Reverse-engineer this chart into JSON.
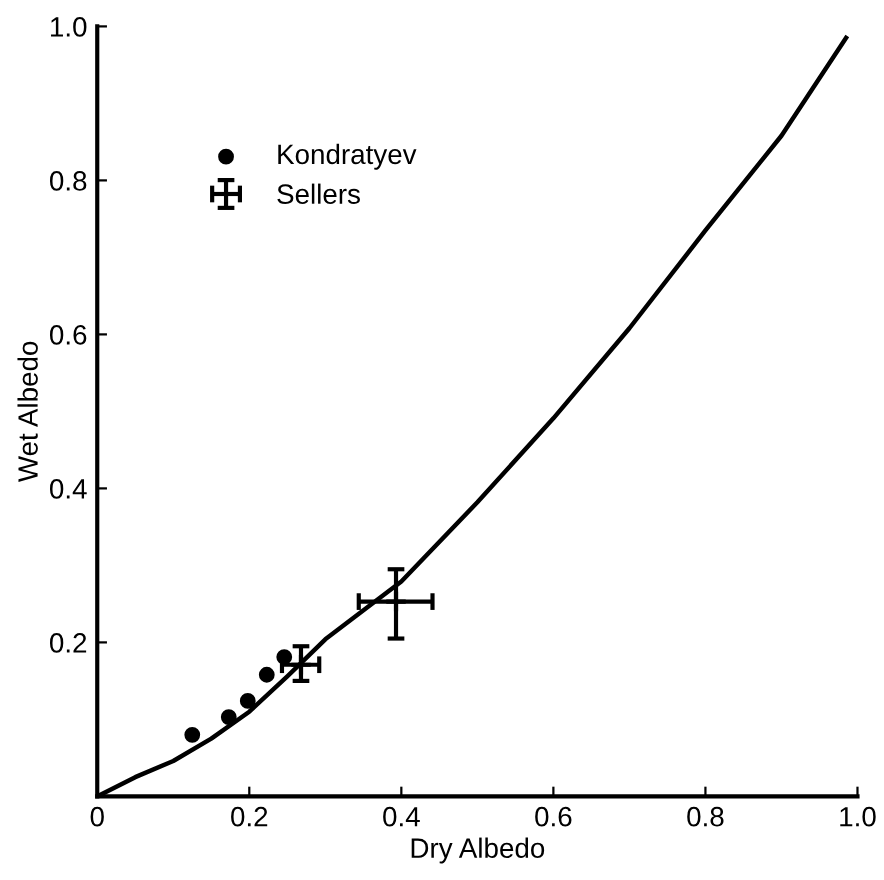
{
  "chart_data": {
    "type": "scatter",
    "xlabel": "Dry Albedo",
    "ylabel": "Wet Albedo",
    "xlim": [
      0,
      1.0
    ],
    "ylim": [
      0,
      1.0
    ],
    "xticks": [
      0,
      0.2,
      0.4,
      0.6,
      0.8,
      {
        "value": 1.0,
        "label": "1.0"
      }
    ],
    "yticks": [
      {
        "value": 0,
        "label": null
      },
      0.2,
      0.4,
      0.6,
      0.8,
      {
        "value": 1.0,
        "label": "1.0"
      }
    ],
    "grid": false,
    "legend": "top left",
    "series": [
      {
        "type": "line",
        "color": "#000000",
        "marker": "none",
        "x": [
          0,
          0.05,
          0.1,
          0.15,
          0.2,
          0.25,
          0.3,
          0.4,
          0.5,
          0.6,
          0.7,
          0.8,
          0.9,
          0.985
        ],
        "values": [
          0,
          0.025,
          0.046,
          0.075,
          0.11,
          0.156,
          0.204,
          0.279,
          0.382,
          0.491,
          0.608,
          0.735,
          0.858,
          0.985
        ]
      },
      {
        "name": "Kondratyev",
        "color": "#000000",
        "marker": "circle",
        "x": [
          0.125,
          0.173,
          0.198,
          0.223,
          0.246
        ],
        "values": [
          0.08,
          0.103,
          0.124,
          0.158,
          0.181
        ]
      },
      {
        "name": "Sellers",
        "color": "#000000",
        "marker": "cross",
        "x": [
          0.268,
          0.393
        ],
        "values": [
          0.171,
          0.253
        ],
        "errors": [
          [
            0.15,
            0.195
          ],
          [
            0.205,
            0.295
          ]
        ],
        "xerrors": [
          [
            0.243,
            0.292
          ],
          [
            0.344,
            0.441
          ]
        ]
      }
    ]
  }
}
